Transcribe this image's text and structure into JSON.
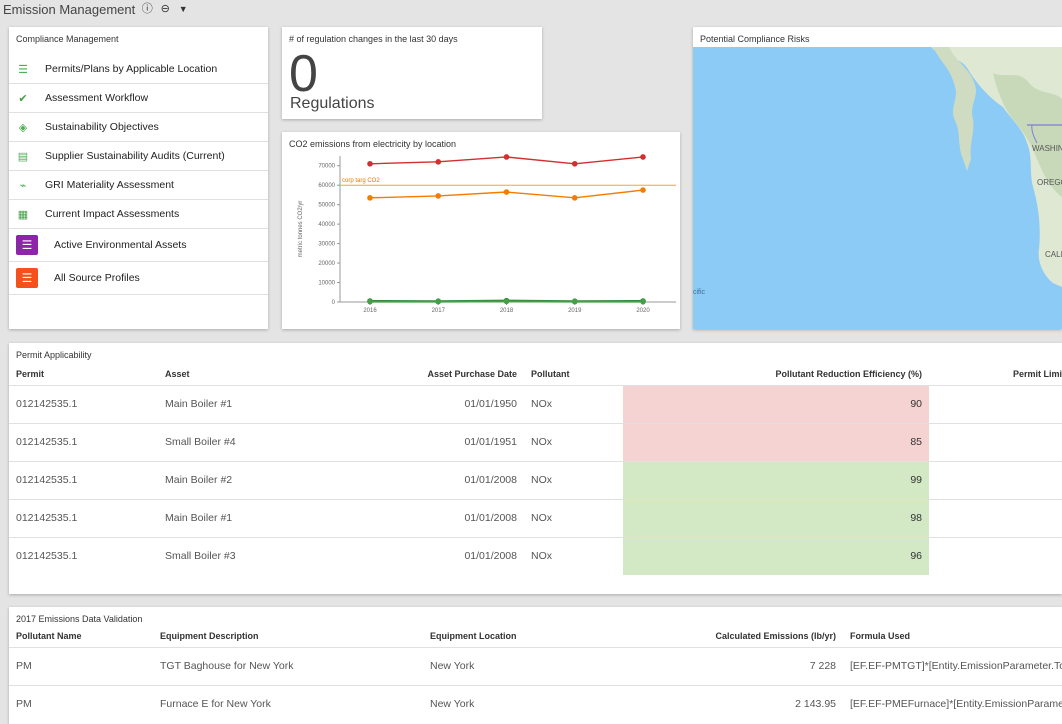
{
  "app": {
    "title": "Emission Management"
  },
  "toolbar": {
    "icons": [
      "info-icon",
      "collapse-icon",
      "filter-icon"
    ],
    "info_glyph": "ⓘ",
    "collapse_glyph": "⊖",
    "filter_glyph": "▼"
  },
  "compliance": {
    "title": "Compliance Management",
    "items": [
      {
        "label": "Permits/Plans by Applicable Location",
        "icon": "list-icon",
        "glyph": "☰",
        "color": "#4caf50"
      },
      {
        "label": "Assessment Workflow",
        "icon": "check-circle-icon",
        "glyph": "✔",
        "color": "#43a047"
      },
      {
        "label": "Sustainability Objectives",
        "icon": "leaf-icon",
        "glyph": "◈",
        "color": "#4caf50"
      },
      {
        "label": "Supplier Sustainability Audits (Current)",
        "icon": "clipboard-icon",
        "glyph": "▤",
        "color": "#4caf50"
      },
      {
        "label": "GRI Materiality Assessment",
        "icon": "pulse-icon",
        "glyph": "⌁",
        "color": "#4caf50"
      },
      {
        "label": "Current Impact Assessments",
        "icon": "calendar-icon",
        "glyph": "▦",
        "color": "#43a047"
      },
      {
        "label": "Active Environmental Assets",
        "icon": "purple-list-icon",
        "glyph": "☰",
        "color": "#8e24aa"
      },
      {
        "label": "All Source Profiles",
        "icon": "orange-list-icon",
        "glyph": "☰",
        "color": "#f4511e"
      }
    ]
  },
  "regulations": {
    "title": "# of regulation changes in the last 30 days",
    "value": "0",
    "unit": "Regulations"
  },
  "co2": {
    "title": "CO2 emissions from electricity by location"
  },
  "chart_data": {
    "type": "line",
    "title": "CO2 emissions from electricity by location",
    "ylabel": "metric tonnes CO2/yr",
    "x": [
      "2016",
      "2017",
      "2018",
      "2019",
      "2020"
    ],
    "yticks": [
      "0",
      "10000",
      "20000",
      "30000",
      "40000",
      "50000",
      "60000",
      "70000"
    ],
    "ylim": [
      0,
      75000
    ],
    "series": [
      {
        "values": [
          71000,
          72000,
          74500,
          71000,
          74500
        ],
        "color": "#d32f2f"
      },
      {
        "values": [
          53500,
          54500,
          56500,
          53500,
          57500
        ],
        "color": "#f57c00"
      },
      {
        "values": [
          500,
          400,
          700,
          400,
          500
        ],
        "color": "#2e7d32"
      },
      {
        "values": [
          200,
          200,
          300,
          200,
          200
        ],
        "color": "#43a047"
      }
    ],
    "reference_line": {
      "label": "corp targ CO2",
      "value": 60000,
      "color": "#f5a623"
    },
    "grid": false
  },
  "risks": {
    "title": "Potential Compliance Risks",
    "map_labels": [
      "WASHIN",
      "OREGO",
      "CALI",
      "cific"
    ]
  },
  "permit": {
    "title": "Permit Applicability",
    "columns": [
      "Permit",
      "Asset",
      "Asset Purchase Date",
      "Pollutant",
      "Pollutant Reduction Efficiency (%)",
      "Permit Limi"
    ],
    "rows": [
      {
        "permit": "012142535.1",
        "asset": "Main Boiler #1",
        "date": "01/01/1950",
        "pollutant": "NOx",
        "eff": "90",
        "status": "red"
      },
      {
        "permit": "012142535.1",
        "asset": "Small Boiler #4",
        "date": "01/01/1951",
        "pollutant": "NOx",
        "eff": "85",
        "status": "red"
      },
      {
        "permit": "012142535.1",
        "asset": "Main Boiler #2",
        "date": "01/01/2008",
        "pollutant": "NOx",
        "eff": "99",
        "status": "green"
      },
      {
        "permit": "012142535.1",
        "asset": "Main Boiler #1",
        "date": "01/01/2008",
        "pollutant": "NOx",
        "eff": "98",
        "status": "green"
      },
      {
        "permit": "012142535.1",
        "asset": "Small Boiler #3",
        "date": "01/01/2008",
        "pollutant": "NOx",
        "eff": "96",
        "status": "green"
      }
    ],
    "colors": {
      "red": "#f6d3d3",
      "green": "#d3e9c6"
    }
  },
  "validation": {
    "title": "2017 Emissions Data Validation",
    "columns": [
      "Pollutant Name",
      "Equipment Description",
      "Equipment Location",
      "Calculated Emissions (lb/yr)",
      "Formula Used"
    ],
    "rows": [
      {
        "pollutant": "PM",
        "desc": "TGT Baghouse for New York",
        "loc": "New York",
        "calc": "7 228",
        "formula": "[EF.EF-PMTGT]*[Entity.EmissionParameter.Tot"
      },
      {
        "pollutant": "PM",
        "desc": "Furnace E for New York",
        "loc": "New York",
        "calc": "2 143.95",
        "formula": "[EF.EF-PMEFurnace]*[Entity.EmissionParameter"
      }
    ]
  }
}
